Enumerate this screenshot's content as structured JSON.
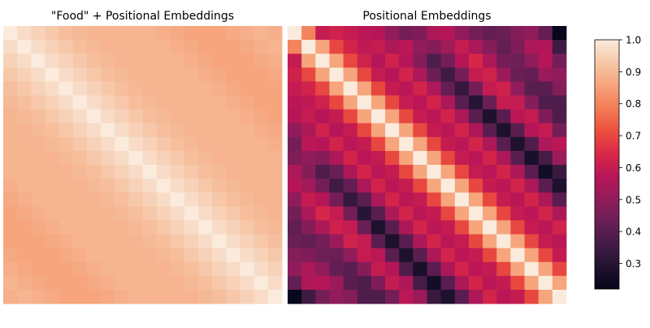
{
  "chart_data": [
    {
      "type": "heatmap",
      "title": "\"Food\" + Positional Embeddings",
      "xlabel": "",
      "ylabel": "",
      "size": [
        20,
        20
      ],
      "note": "cosine similarity matrix; values estimated by colour",
      "values": [
        [
          1.0,
          0.97,
          0.95,
          0.93,
          0.91,
          0.9,
          0.89,
          0.89,
          0.89,
          0.89,
          0.89,
          0.88,
          0.87,
          0.86,
          0.86,
          0.86,
          0.87,
          0.88,
          0.89,
          0.88
        ],
        [
          0.97,
          1.0,
          0.97,
          0.95,
          0.93,
          0.91,
          0.9,
          0.89,
          0.89,
          0.89,
          0.89,
          0.89,
          0.88,
          0.87,
          0.86,
          0.86,
          0.86,
          0.87,
          0.88,
          0.89
        ],
        [
          0.95,
          0.97,
          1.0,
          0.97,
          0.95,
          0.93,
          0.91,
          0.9,
          0.89,
          0.89,
          0.89,
          0.89,
          0.89,
          0.88,
          0.87,
          0.86,
          0.86,
          0.86,
          0.87,
          0.88
        ],
        [
          0.93,
          0.95,
          0.97,
          1.0,
          0.97,
          0.95,
          0.93,
          0.91,
          0.9,
          0.89,
          0.89,
          0.89,
          0.89,
          0.89,
          0.88,
          0.87,
          0.86,
          0.86,
          0.86,
          0.87
        ],
        [
          0.91,
          0.93,
          0.95,
          0.97,
          1.0,
          0.97,
          0.95,
          0.93,
          0.91,
          0.9,
          0.89,
          0.89,
          0.89,
          0.89,
          0.89,
          0.88,
          0.87,
          0.86,
          0.86,
          0.86
        ],
        [
          0.9,
          0.91,
          0.93,
          0.95,
          0.97,
          1.0,
          0.97,
          0.95,
          0.93,
          0.91,
          0.9,
          0.89,
          0.89,
          0.89,
          0.89,
          0.89,
          0.88,
          0.87,
          0.86,
          0.86
        ],
        [
          0.89,
          0.9,
          0.91,
          0.93,
          0.95,
          0.97,
          1.0,
          0.97,
          0.95,
          0.93,
          0.91,
          0.9,
          0.89,
          0.89,
          0.89,
          0.89,
          0.89,
          0.88,
          0.87,
          0.86
        ],
        [
          0.89,
          0.89,
          0.9,
          0.91,
          0.93,
          0.95,
          0.97,
          1.0,
          0.97,
          0.95,
          0.93,
          0.91,
          0.9,
          0.89,
          0.89,
          0.89,
          0.89,
          0.89,
          0.88,
          0.87
        ],
        [
          0.89,
          0.89,
          0.89,
          0.9,
          0.91,
          0.93,
          0.95,
          0.97,
          1.0,
          0.97,
          0.95,
          0.93,
          0.91,
          0.9,
          0.89,
          0.89,
          0.89,
          0.89,
          0.89,
          0.88
        ],
        [
          0.89,
          0.89,
          0.89,
          0.89,
          0.9,
          0.91,
          0.93,
          0.95,
          0.97,
          1.0,
          0.97,
          0.95,
          0.93,
          0.91,
          0.9,
          0.89,
          0.89,
          0.89,
          0.89,
          0.89
        ],
        [
          0.89,
          0.89,
          0.89,
          0.89,
          0.89,
          0.9,
          0.91,
          0.93,
          0.95,
          0.97,
          1.0,
          0.97,
          0.95,
          0.93,
          0.91,
          0.9,
          0.89,
          0.89,
          0.89,
          0.89
        ],
        [
          0.88,
          0.89,
          0.89,
          0.89,
          0.89,
          0.89,
          0.9,
          0.91,
          0.93,
          0.95,
          0.97,
          1.0,
          0.97,
          0.95,
          0.93,
          0.91,
          0.9,
          0.89,
          0.89,
          0.89
        ],
        [
          0.87,
          0.88,
          0.89,
          0.89,
          0.89,
          0.89,
          0.89,
          0.9,
          0.91,
          0.93,
          0.95,
          0.97,
          1.0,
          0.97,
          0.95,
          0.93,
          0.91,
          0.9,
          0.89,
          0.89
        ],
        [
          0.86,
          0.87,
          0.88,
          0.89,
          0.89,
          0.89,
          0.89,
          0.89,
          0.9,
          0.91,
          0.93,
          0.95,
          0.97,
          1.0,
          0.97,
          0.95,
          0.93,
          0.91,
          0.9,
          0.89
        ],
        [
          0.86,
          0.86,
          0.87,
          0.88,
          0.89,
          0.89,
          0.89,
          0.89,
          0.89,
          0.9,
          0.91,
          0.93,
          0.95,
          0.97,
          1.0,
          0.97,
          0.95,
          0.93,
          0.91,
          0.9
        ],
        [
          0.86,
          0.86,
          0.86,
          0.87,
          0.88,
          0.89,
          0.89,
          0.89,
          0.89,
          0.89,
          0.9,
          0.91,
          0.93,
          0.95,
          0.97,
          1.0,
          0.97,
          0.95,
          0.93,
          0.91
        ],
        [
          0.87,
          0.86,
          0.86,
          0.86,
          0.87,
          0.88,
          0.89,
          0.89,
          0.89,
          0.89,
          0.89,
          0.9,
          0.91,
          0.93,
          0.95,
          0.97,
          1.0,
          0.97,
          0.95,
          0.93
        ],
        [
          0.88,
          0.87,
          0.86,
          0.86,
          0.86,
          0.87,
          0.88,
          0.89,
          0.89,
          0.89,
          0.89,
          0.89,
          0.9,
          0.91,
          0.93,
          0.95,
          0.97,
          1.0,
          0.97,
          0.95
        ],
        [
          0.89,
          0.88,
          0.87,
          0.86,
          0.86,
          0.86,
          0.87,
          0.88,
          0.89,
          0.89,
          0.89,
          0.89,
          0.89,
          0.9,
          0.91,
          0.93,
          0.95,
          0.97,
          1.0,
          0.97
        ],
        [
          0.88,
          0.89,
          0.88,
          0.87,
          0.86,
          0.86,
          0.86,
          0.87,
          0.88,
          0.89,
          0.89,
          0.89,
          0.89,
          0.89,
          0.9,
          0.91,
          0.93,
          0.95,
          0.97,
          1.0
        ]
      ]
    },
    {
      "type": "heatmap",
      "title": "Positional Embeddings",
      "xlabel": "",
      "ylabel": "",
      "size": [
        20,
        20
      ],
      "note": "cosine similarity matrix; values estimated by colour",
      "values": [
        [
          1.0,
          0.8,
          0.6,
          0.62,
          0.6,
          0.58,
          0.57,
          0.5,
          0.45,
          0.47,
          0.55,
          0.57,
          0.5,
          0.45,
          0.42,
          0.43,
          0.48,
          0.5,
          0.42,
          0.23
        ],
        [
          0.8,
          1.0,
          0.86,
          0.7,
          0.63,
          0.59,
          0.6,
          0.55,
          0.58,
          0.5,
          0.48,
          0.53,
          0.6,
          0.55,
          0.48,
          0.42,
          0.47,
          0.55,
          0.56,
          0.35
        ],
        [
          0.6,
          0.86,
          1.0,
          0.86,
          0.7,
          0.62,
          0.57,
          0.62,
          0.57,
          0.48,
          0.38,
          0.45,
          0.57,
          0.64,
          0.55,
          0.45,
          0.44,
          0.5,
          0.57,
          0.45
        ],
        [
          0.62,
          0.7,
          0.86,
          1.0,
          0.86,
          0.7,
          0.6,
          0.57,
          0.63,
          0.55,
          0.43,
          0.35,
          0.45,
          0.6,
          0.62,
          0.52,
          0.43,
          0.42,
          0.52,
          0.5
        ],
        [
          0.6,
          0.63,
          0.7,
          0.86,
          1.0,
          0.86,
          0.7,
          0.6,
          0.58,
          0.63,
          0.55,
          0.42,
          0.33,
          0.45,
          0.6,
          0.62,
          0.5,
          0.4,
          0.4,
          0.48
        ],
        [
          0.58,
          0.59,
          0.62,
          0.7,
          0.86,
          1.0,
          0.86,
          0.7,
          0.6,
          0.58,
          0.63,
          0.55,
          0.4,
          0.3,
          0.43,
          0.6,
          0.6,
          0.48,
          0.38,
          0.38
        ],
        [
          0.57,
          0.6,
          0.57,
          0.6,
          0.7,
          0.86,
          1.0,
          0.86,
          0.7,
          0.6,
          0.58,
          0.63,
          0.55,
          0.4,
          0.28,
          0.4,
          0.58,
          0.6,
          0.47,
          0.38
        ],
        [
          0.5,
          0.55,
          0.62,
          0.57,
          0.6,
          0.7,
          0.86,
          1.0,
          0.86,
          0.7,
          0.6,
          0.58,
          0.63,
          0.55,
          0.4,
          0.28,
          0.4,
          0.57,
          0.6,
          0.45
        ],
        [
          0.45,
          0.58,
          0.57,
          0.63,
          0.58,
          0.6,
          0.7,
          0.86,
          1.0,
          0.86,
          0.7,
          0.6,
          0.58,
          0.63,
          0.55,
          0.4,
          0.28,
          0.38,
          0.55,
          0.58
        ],
        [
          0.47,
          0.5,
          0.48,
          0.55,
          0.63,
          0.58,
          0.6,
          0.7,
          0.86,
          1.0,
          0.86,
          0.7,
          0.6,
          0.58,
          0.63,
          0.55,
          0.4,
          0.27,
          0.36,
          0.52
        ],
        [
          0.55,
          0.48,
          0.38,
          0.43,
          0.55,
          0.63,
          0.58,
          0.6,
          0.7,
          0.86,
          1.0,
          0.86,
          0.7,
          0.6,
          0.58,
          0.63,
          0.55,
          0.4,
          0.26,
          0.34
        ],
        [
          0.57,
          0.53,
          0.45,
          0.35,
          0.42,
          0.55,
          0.63,
          0.58,
          0.6,
          0.7,
          0.86,
          1.0,
          0.86,
          0.7,
          0.6,
          0.58,
          0.63,
          0.55,
          0.4,
          0.28
        ],
        [
          0.5,
          0.6,
          0.57,
          0.45,
          0.33,
          0.4,
          0.55,
          0.63,
          0.58,
          0.6,
          0.7,
          0.86,
          1.0,
          0.86,
          0.7,
          0.6,
          0.58,
          0.63,
          0.55,
          0.4
        ],
        [
          0.45,
          0.55,
          0.64,
          0.6,
          0.45,
          0.3,
          0.4,
          0.55,
          0.63,
          0.58,
          0.6,
          0.7,
          0.86,
          1.0,
          0.86,
          0.7,
          0.6,
          0.58,
          0.63,
          0.55
        ],
        [
          0.42,
          0.48,
          0.55,
          0.62,
          0.6,
          0.43,
          0.28,
          0.4,
          0.55,
          0.63,
          0.58,
          0.6,
          0.7,
          0.86,
          1.0,
          0.86,
          0.7,
          0.6,
          0.58,
          0.63
        ],
        [
          0.43,
          0.42,
          0.45,
          0.52,
          0.62,
          0.6,
          0.4,
          0.28,
          0.4,
          0.55,
          0.63,
          0.58,
          0.6,
          0.7,
          0.86,
          1.0,
          0.86,
          0.7,
          0.6,
          0.58
        ],
        [
          0.48,
          0.47,
          0.44,
          0.43,
          0.5,
          0.6,
          0.58,
          0.4,
          0.28,
          0.4,
          0.55,
          0.63,
          0.58,
          0.6,
          0.7,
          0.86,
          1.0,
          0.86,
          0.7,
          0.6
        ],
        [
          0.5,
          0.55,
          0.5,
          0.42,
          0.4,
          0.48,
          0.6,
          0.57,
          0.38,
          0.27,
          0.4,
          0.55,
          0.63,
          0.58,
          0.6,
          0.7,
          0.86,
          1.0,
          0.86,
          0.7
        ],
        [
          0.42,
          0.56,
          0.57,
          0.52,
          0.4,
          0.38,
          0.47,
          0.6,
          0.55,
          0.36,
          0.26,
          0.4,
          0.55,
          0.63,
          0.58,
          0.6,
          0.7,
          0.86,
          1.0,
          0.86
        ],
        [
          0.23,
          0.35,
          0.45,
          0.5,
          0.48,
          0.38,
          0.38,
          0.45,
          0.58,
          0.52,
          0.34,
          0.28,
          0.4,
          0.55,
          0.63,
          0.58,
          0.6,
          0.7,
          0.86,
          1.0
        ]
      ]
    }
  ],
  "colorbar": {
    "colormap": "rocket",
    "range": [
      0.22,
      1.0
    ],
    "ticks": [
      {
        "value": 1.0,
        "label": "1.0"
      },
      {
        "value": 0.9,
        "label": "0.9"
      },
      {
        "value": 0.8,
        "label": "0.8"
      },
      {
        "value": 0.7,
        "label": "0.7"
      },
      {
        "value": 0.6,
        "label": "0.6"
      },
      {
        "value": 0.5,
        "label": "0.5"
      },
      {
        "value": 0.4,
        "label": "0.4"
      },
      {
        "value": 0.3,
        "label": "0.3"
      }
    ],
    "stops": [
      "#03051a",
      "#221331",
      "#451c47",
      "#6a1f56",
      "#921c5b",
      "#b91657",
      "#d92847",
      "#ed503e",
      "#f47d57",
      "#f6a47c",
      "#f6c8a8",
      "#faebdd"
    ]
  }
}
